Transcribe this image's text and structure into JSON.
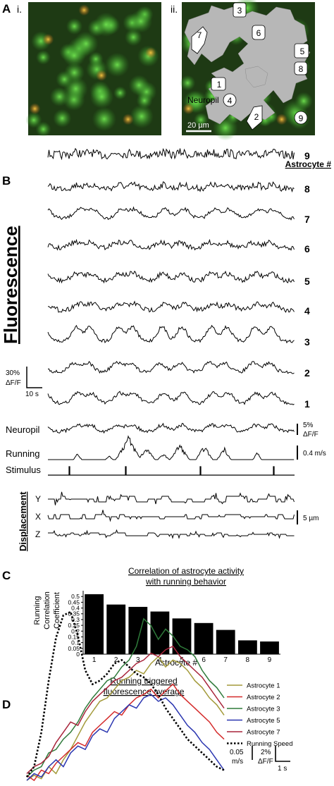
{
  "panel_a": {
    "letter": "A",
    "sub_i": "i.",
    "sub_ii": "ii.",
    "cell_labels": [
      "3",
      "7",
      "6",
      "5",
      "8",
      "1",
      "4",
      "2",
      "9"
    ],
    "neuropil_label": "Neuropil",
    "scale_label": "20 µm",
    "colors": {
      "background": "#1a3a10",
      "cell": "#4fc43a",
      "astro": "#d89a2a",
      "mask": "#b7b7b7"
    }
  },
  "panel_b": {
    "letter": "B",
    "header": "Astrocyte #",
    "ylabel": "Fluorescence",
    "astro_numbers": [
      "9",
      "8",
      "7",
      "6",
      "5",
      "4",
      "3",
      "2",
      "1"
    ],
    "scale_left": {
      "pct": "30%",
      "unit": "ΔF/F",
      "time": "10 s"
    },
    "neuropil": {
      "label": "Neuropil",
      "scale_pct": "5%",
      "scale_unit": "ΔF/F"
    },
    "running": {
      "label": "Running",
      "scale": "0.4 m/s"
    },
    "stimulus": {
      "label": "Stimulus"
    },
    "displacement": {
      "label": "Displacement",
      "axes": [
        "Y",
        "X",
        "Z"
      ],
      "scale": "5 µm"
    }
  },
  "chart_data": [
    {
      "type": "bar",
      "letter": "C",
      "title": "Correlation of astrocyte activity",
      "subtitle": "with running behavior",
      "ylabel_lines": [
        "Running",
        "Correlation",
        "Coefficient"
      ],
      "xlabel": "Astrocyte #",
      "categories": [
        "1",
        "2",
        "3",
        "4",
        "5",
        "6",
        "7",
        "8",
        "9"
      ],
      "values": [
        0.52,
        0.43,
        0.41,
        0.37,
        0.31,
        0.27,
        0.21,
        0.12,
        0.11
      ],
      "ylim": [
        0,
        0.55
      ],
      "yticks": [
        "0",
        "0.05",
        "0.1",
        "0.15",
        "0.2",
        "0.25",
        "0.3",
        "0.35",
        "0.4",
        "0.45",
        "0.5"
      ],
      "bar_color": "#000000"
    },
    {
      "type": "line",
      "letter": "D",
      "title": "Running triggered",
      "subtitle": "fluorescence average",
      "series": [
        {
          "name": "Astrocyte 1",
          "color": "#a39a3a",
          "values": [
            0.02,
            0.05,
            0.03,
            0.1,
            0.06,
            0.14,
            0.2,
            0.28,
            0.36,
            0.42,
            0.48,
            0.5,
            0.55,
            0.6,
            0.62,
            0.66,
            0.64,
            0.7,
            0.74,
            0.68,
            0.72,
            0.7,
            0.66,
            0.6,
            0.56,
            0.5,
            0.46,
            0.4
          ]
        },
        {
          "name": "Astrocyte 2",
          "color": "#d42a2a",
          "values": [
            0.05,
            0.02,
            0.08,
            0.06,
            0.12,
            0.16,
            0.2,
            0.24,
            0.22,
            0.3,
            0.34,
            0.38,
            0.42,
            0.4,
            0.46,
            0.5,
            0.52,
            0.55,
            0.5,
            0.54,
            0.58,
            0.52,
            0.48,
            0.44,
            0.4,
            0.36,
            0.3,
            0.26
          ]
        },
        {
          "name": "Astrocyte 3",
          "color": "#2e7a3a",
          "values": [
            0.04,
            0.08,
            0.1,
            0.18,
            0.2,
            0.26,
            0.3,
            0.36,
            0.44,
            0.5,
            0.55,
            0.6,
            0.62,
            0.68,
            0.72,
            0.8,
            0.96,
            0.92,
            0.84,
            0.9,
            0.86,
            0.8,
            0.78,
            0.74,
            0.66,
            0.6,
            0.56,
            0.5
          ]
        },
        {
          "name": "Astrocyte 5",
          "color": "#2a35b0",
          "values": [
            0.02,
            0.06,
            0.04,
            0.1,
            0.14,
            0.1,
            0.18,
            0.22,
            0.2,
            0.28,
            0.32,
            0.3,
            0.38,
            0.42,
            0.46,
            0.44,
            0.5,
            0.52,
            0.48,
            0.5,
            0.46,
            0.4,
            0.34,
            0.3,
            0.24,
            0.2,
            0.14,
            0.08
          ]
        },
        {
          "name": "Astrocyte 7",
          "color": "#a8243a",
          "values": [
            0.06,
            0.1,
            0.12,
            0.16,
            0.24,
            0.3,
            0.36,
            0.34,
            0.42,
            0.48,
            0.52,
            0.56,
            0.6,
            0.62,
            0.66,
            0.7,
            0.72,
            0.76,
            0.74,
            0.78,
            0.8,
            0.74,
            0.7,
            0.66,
            0.62,
            0.56,
            0.5,
            0.44
          ]
        },
        {
          "name": "Running Speed",
          "color": "#000000",
          "dashed": true,
          "values": [
            0.04,
            0.1,
            0.3,
            0.6,
            0.85,
            0.98,
            1.0,
            0.86,
            0.66,
            0.58,
            0.6,
            0.64,
            0.7,
            0.72,
            0.68,
            0.64,
            0.62,
            0.58,
            0.52,
            0.44,
            0.38,
            0.32,
            0.26,
            0.22,
            0.18,
            0.14,
            0.1,
            0.08
          ]
        }
      ],
      "scale_speed": [
        "0.05",
        "m/s"
      ],
      "scale_fluor": [
        "2%",
        "ΔF/F"
      ],
      "scale_time": "1 s"
    }
  ]
}
